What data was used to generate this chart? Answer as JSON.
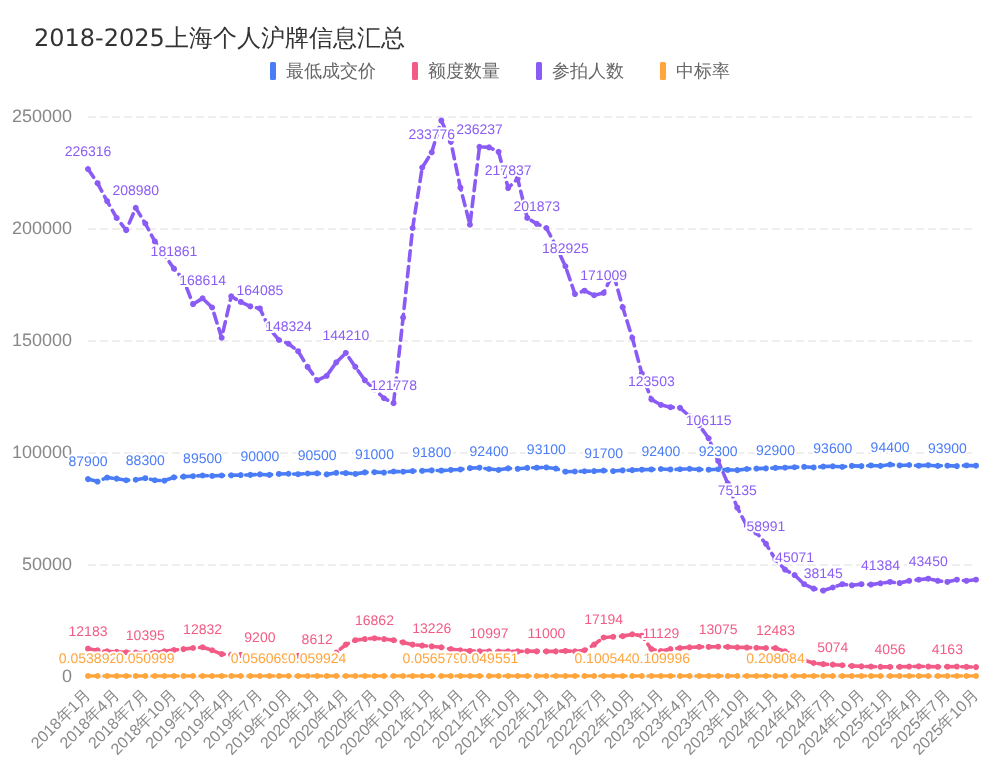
{
  "chart_data": {
    "type": "line",
    "title": "2018-2025上海个人沪牌信息汇总",
    "categories": [
      "2018年1月",
      null,
      null,
      "2018年4月",
      null,
      null,
      "2018年7月",
      null,
      null,
      "2018年10月",
      null,
      null,
      "2019年1月",
      null,
      null,
      "2019年4月",
      null,
      null,
      "2019年7月",
      null,
      null,
      "2019年10月",
      null,
      null,
      "2020年1月",
      null,
      null,
      "2020年4月",
      null,
      null,
      "2020年7月",
      null,
      null,
      "2020年10月",
      null,
      null,
      "2021年1月",
      null,
      null,
      "2021年4月",
      null,
      null,
      "2021年7月",
      null,
      null,
      "2021年10月",
      null,
      null,
      "2022年1月",
      null,
      null,
      "2022年4月",
      null,
      null,
      "2022年7月",
      null,
      null,
      "2022年10月",
      null,
      null,
      "2023年1月",
      null,
      null,
      "2023年4月",
      null,
      null,
      "2023年7月",
      null,
      null,
      "2023年10月",
      null,
      null,
      "2024年1月",
      null,
      null,
      "2024年4月",
      null,
      null,
      "2024年7月",
      null,
      null,
      "2024年10月",
      null,
      null,
      "2025年1月",
      null,
      null,
      "2025年4月",
      null,
      null,
      "2025年7月",
      null,
      null,
      "2025年10月"
    ],
    "series": [
      {
        "name": "最低成交价",
        "color": "#4a7cf7",
        "values": [
          87900,
          86800,
          88600,
          88100,
          87400,
          87600,
          88300,
          87400,
          87200,
          88700,
          89000,
          89200,
          89500,
          89300,
          89500,
          89600,
          89700,
          89800,
          90000,
          89800,
          90200,
          90300,
          90100,
          90400,
          90500,
          90000,
          90700,
          90600,
          90200,
          90900,
          91000,
          90800,
          91300,
          91200,
          91500,
          91600,
          91800,
          91700,
          92000,
          92200,
          92800,
          93000,
          92400,
          92000,
          92700,
          92500,
          92900,
          93000,
          93100,
          92600,
          91200,
          91300,
          91400,
          91500,
          91700,
          91500,
          91800,
          91900,
          92100,
          92200,
          92400,
          92200,
          92300,
          92500,
          92200,
          92100,
          92300,
          92000,
          91900,
          92400,
          92600,
          92700,
          92900,
          93000,
          93200,
          93400,
          93100,
          93500,
          93600,
          93400,
          93800,
          93700,
          94000,
          93800,
          94400,
          94000,
          94200,
          93900,
          94100,
          93800,
          93900,
          93700,
          94000,
          93900
        ],
        "value_labels": [
          "87900",
          null,
          null,
          null,
          null,
          null,
          "88300",
          null,
          null,
          null,
          null,
          null,
          "89500",
          null,
          null,
          null,
          null,
          null,
          "90000",
          null,
          null,
          null,
          null,
          null,
          "90500",
          null,
          null,
          null,
          null,
          null,
          "91000",
          null,
          null,
          null,
          null,
          null,
          "91800",
          null,
          null,
          null,
          null,
          null,
          "92400",
          null,
          null,
          null,
          null,
          null,
          "93100",
          null,
          null,
          null,
          null,
          null,
          "91700",
          null,
          null,
          null,
          null,
          null,
          "92400",
          null,
          null,
          null,
          null,
          null,
          "92300",
          null,
          null,
          null,
          null,
          null,
          "92900",
          null,
          null,
          null,
          null,
          null,
          "93600",
          null,
          null,
          null,
          null,
          null,
          "94400",
          null,
          null,
          null,
          null,
          null,
          "93900",
          null,
          null,
          null
        ]
      },
      {
        "name": "额度数量",
        "color": "#f25b85",
        "values": [
          12183,
          11500,
          11000,
          10800,
          10600,
          10500,
          10395,
          10500,
          11000,
          11600,
          12000,
          12500,
          12832,
          11500,
          9800,
          9500,
          9400,
          9300,
          9200,
          9300,
          9400,
          9200,
          9000,
          8800,
          8612,
          8700,
          10500,
          14000,
          16000,
          16500,
          16862,
          16500,
          16000,
          15000,
          14000,
          13600,
          13226,
          12800,
          12000,
          11500,
          11200,
          11000,
          10997,
          10900,
          11000,
          11000,
          11100,
          11000,
          11000,
          11000,
          11200,
          11000,
          11500,
          14000,
          17194,
          17500,
          17800,
          18600,
          18000,
          12000,
          11129,
          12000,
          12500,
          12800,
          13000,
          13000,
          13075,
          13000,
          12800,
          12700,
          12600,
          12500,
          12483,
          11000,
          9000,
          7000,
          5800,
          5300,
          5074,
          4800,
          4500,
          4300,
          4200,
          4100,
          4056,
          4100,
          4200,
          4300,
          4200,
          4100,
          4163,
          4200,
          4100,
          4000
        ],
        "value_labels": [
          "12183",
          null,
          null,
          null,
          null,
          null,
          "10395",
          null,
          null,
          null,
          null,
          null,
          "12832",
          null,
          null,
          null,
          null,
          null,
          "9200",
          null,
          null,
          null,
          null,
          null,
          "8612",
          null,
          null,
          null,
          null,
          null,
          "16862",
          null,
          null,
          null,
          null,
          null,
          "13226",
          null,
          null,
          null,
          null,
          null,
          "10997",
          null,
          null,
          null,
          null,
          null,
          "11000",
          null,
          null,
          null,
          null,
          null,
          "17194",
          null,
          null,
          null,
          null,
          null,
          "11129",
          null,
          null,
          null,
          null,
          null,
          "13075",
          null,
          null,
          null,
          null,
          null,
          "12483",
          null,
          null,
          null,
          null,
          null,
          "5074",
          null,
          null,
          null,
          null,
          null,
          "4056",
          null,
          null,
          null,
          null,
          null,
          "4163",
          null,
          null,
          null
        ]
      },
      {
        "name": "参拍人数",
        "color": "#8a5cf5",
        "values": [
          226316,
          220000,
          212000,
          204500,
          199000,
          208980,
          202000,
          194000,
          188000,
          181861,
          177000,
          166000,
          168614,
          164500,
          151000,
          169500,
          167000,
          165000,
          164085,
          155000,
          150000,
          148324,
          145000,
          138000,
          132000,
          134000,
          140000,
          144210,
          138000,
          132000,
          128000,
          124000,
          121778,
          160000,
          200000,
          227000,
          233776,
          248000,
          238500,
          218000,
          201500,
          236237,
          236000,
          234000,
          217837,
          222000,
          204500,
          201873,
          200000,
          192000,
          182925,
          170500,
          172000,
          170000,
          171009,
          180000,
          164600,
          151000,
          135000,
          123503,
          121000,
          120000,
          119700,
          116000,
          112000,
          106115,
          96000,
          86000,
          75135,
          67000,
          64000,
          58991,
          52000,
          47500,
          45071,
          41000,
          39000,
          38145,
          39500,
          41000,
          40500,
          41000,
          40800,
          41384,
          42000,
          41500,
          42500,
          43000,
          43450,
          42500,
          42000,
          43000,
          42500,
          43000
        ],
        "value_labels": [
          "226316",
          null,
          null,
          null,
          null,
          "208980",
          null,
          null,
          null,
          "181861",
          null,
          null,
          "168614",
          null,
          null,
          null,
          null,
          null,
          "164085",
          null,
          null,
          "148324",
          null,
          null,
          null,
          null,
          null,
          "144210",
          null,
          null,
          null,
          null,
          "121778",
          null,
          null,
          null,
          "233776",
          null,
          null,
          null,
          null,
          "236237",
          null,
          null,
          "217837",
          null,
          null,
          "201873",
          null,
          null,
          "182925",
          null,
          null,
          null,
          "171009",
          null,
          null,
          null,
          null,
          "123503",
          null,
          null,
          null,
          null,
          null,
          "106115",
          null,
          null,
          "75135",
          null,
          null,
          "58991",
          null,
          null,
          "45071",
          null,
          null,
          "38145",
          null,
          null,
          null,
          null,
          null,
          "41384",
          null,
          null,
          null,
          null,
          "43450",
          null,
          null,
          null,
          null,
          null
        ]
      },
      {
        "name": "中标率",
        "color": "#ffa53b",
        "values": [
          0.053892,
          0.05,
          0.05,
          0.05,
          0.05,
          0.05,
          0.050999,
          0.05,
          0.05,
          0.05,
          0.05,
          0.05,
          0.05,
          0.05,
          0.05,
          0.05,
          0.05,
          0.05,
          0.056069,
          0.05,
          0.05,
          0.05,
          0.05,
          0.05,
          0.059924,
          0.05,
          0.05,
          0.05,
          0.05,
          0.05,
          0.05,
          0.05,
          0.05,
          0.05,
          0.05,
          0.05,
          0.056579,
          0.05,
          0.05,
          0.05,
          0.05,
          0.05,
          0.049551,
          0.05,
          0.05,
          0.05,
          0.05,
          0.05,
          0.05,
          0.05,
          0.05,
          0.05,
          0.05,
          0.05,
          0.100544,
          0.1,
          0.1,
          0.1,
          0.1,
          0.1,
          0.109996,
          0.1,
          0.1,
          0.1,
          0.1,
          0.1,
          0.1,
          0.1,
          0.1,
          0.1,
          0.1,
          0.1,
          0.208084,
          0.1,
          0.1,
          0.1,
          0.1,
          0.1,
          0.1,
          0.1,
          0.1,
          0.1,
          0.1,
          0.1,
          0.1,
          0.1,
          0.1,
          0.1,
          0.1,
          0.1,
          0.1,
          0.1,
          0.1,
          0.1
        ],
        "value_labels": [
          "0.053892",
          null,
          null,
          null,
          null,
          null,
          "0.050999",
          null,
          null,
          null,
          null,
          null,
          null,
          null,
          null,
          null,
          null,
          null,
          "0.056069",
          null,
          null,
          null,
          null,
          null,
          "0.059924",
          null,
          null,
          null,
          null,
          null,
          null,
          null,
          null,
          null,
          null,
          null,
          "0.056579",
          null,
          null,
          null,
          null,
          null,
          "0.049551",
          null,
          null,
          null,
          null,
          null,
          null,
          null,
          null,
          null,
          null,
          null,
          "0.100544",
          null,
          null,
          null,
          null,
          null,
          "0.109996",
          null,
          null,
          null,
          null,
          null,
          null,
          null,
          null,
          null,
          null,
          null,
          "0.208084",
          null,
          null,
          null,
          null,
          null,
          null,
          null,
          null,
          null,
          null,
          null,
          null,
          null,
          null,
          null,
          null,
          null,
          null,
          null,
          null,
          null
        ]
      }
    ],
    "ylim": [
      0,
      250000
    ],
    "yticks": [
      0,
      50000,
      100000,
      150000,
      200000,
      250000
    ],
    "grid": "y",
    "legend": "top",
    "marker": "circle",
    "line_style": "dashed"
  }
}
